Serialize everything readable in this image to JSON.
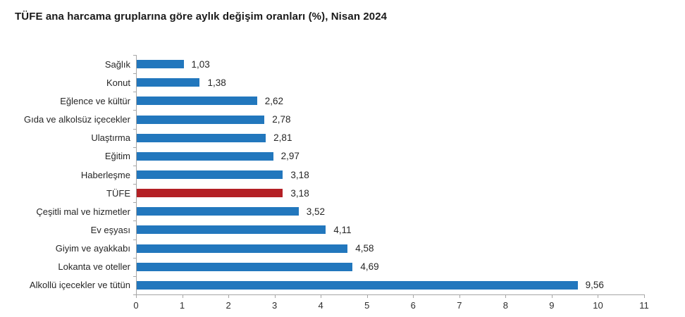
{
  "title": "TÜFE ana harcama gruplarına göre aylık değişim oranları (%), Nisan 2024",
  "chart_data": {
    "type": "bar",
    "orientation": "horizontal",
    "title": "TÜFE ana harcama gruplarına göre aylık değişim oranları (%), Nisan 2024",
    "categories": [
      "Sağlık",
      "Konut",
      "Eğlence ve kültür",
      "Gıda ve alkolsüz içecekler",
      "Ulaştırma",
      "Eğitim",
      "Haberleşme",
      "TÜFE",
      "Çeşitli mal ve hizmetler",
      "Ev eşyası",
      "Giyim ve ayakkabı",
      "Lokanta ve oteller",
      "Alkollü içecekler ve tütün"
    ],
    "values": [
      1.03,
      1.38,
      2.62,
      2.78,
      2.81,
      2.97,
      3.18,
      3.18,
      3.52,
      4.11,
      4.58,
      4.69,
      9.56
    ],
    "value_labels": [
      "1,03",
      "1,38",
      "2,62",
      "2,78",
      "2,81",
      "2,97",
      "3,18",
      "3,18",
      "3,52",
      "4,11",
      "4,58",
      "4,69",
      "9,56"
    ],
    "highlight_category": "TÜFE",
    "highlight_index": 7,
    "xlabel": "",
    "ylabel": "",
    "xlim": [
      0,
      11
    ],
    "x_ticks": [
      "0",
      "1",
      "2",
      "3",
      "4",
      "5",
      "6",
      "7",
      "8",
      "9",
      "10",
      "11"
    ],
    "grid": false,
    "legend": false,
    "colors": {
      "bar": "#2277bd",
      "highlight": "#b42025",
      "axis": "#a6a6a6",
      "title_text": "#1a1a1a",
      "label_text": "#262626"
    }
  }
}
